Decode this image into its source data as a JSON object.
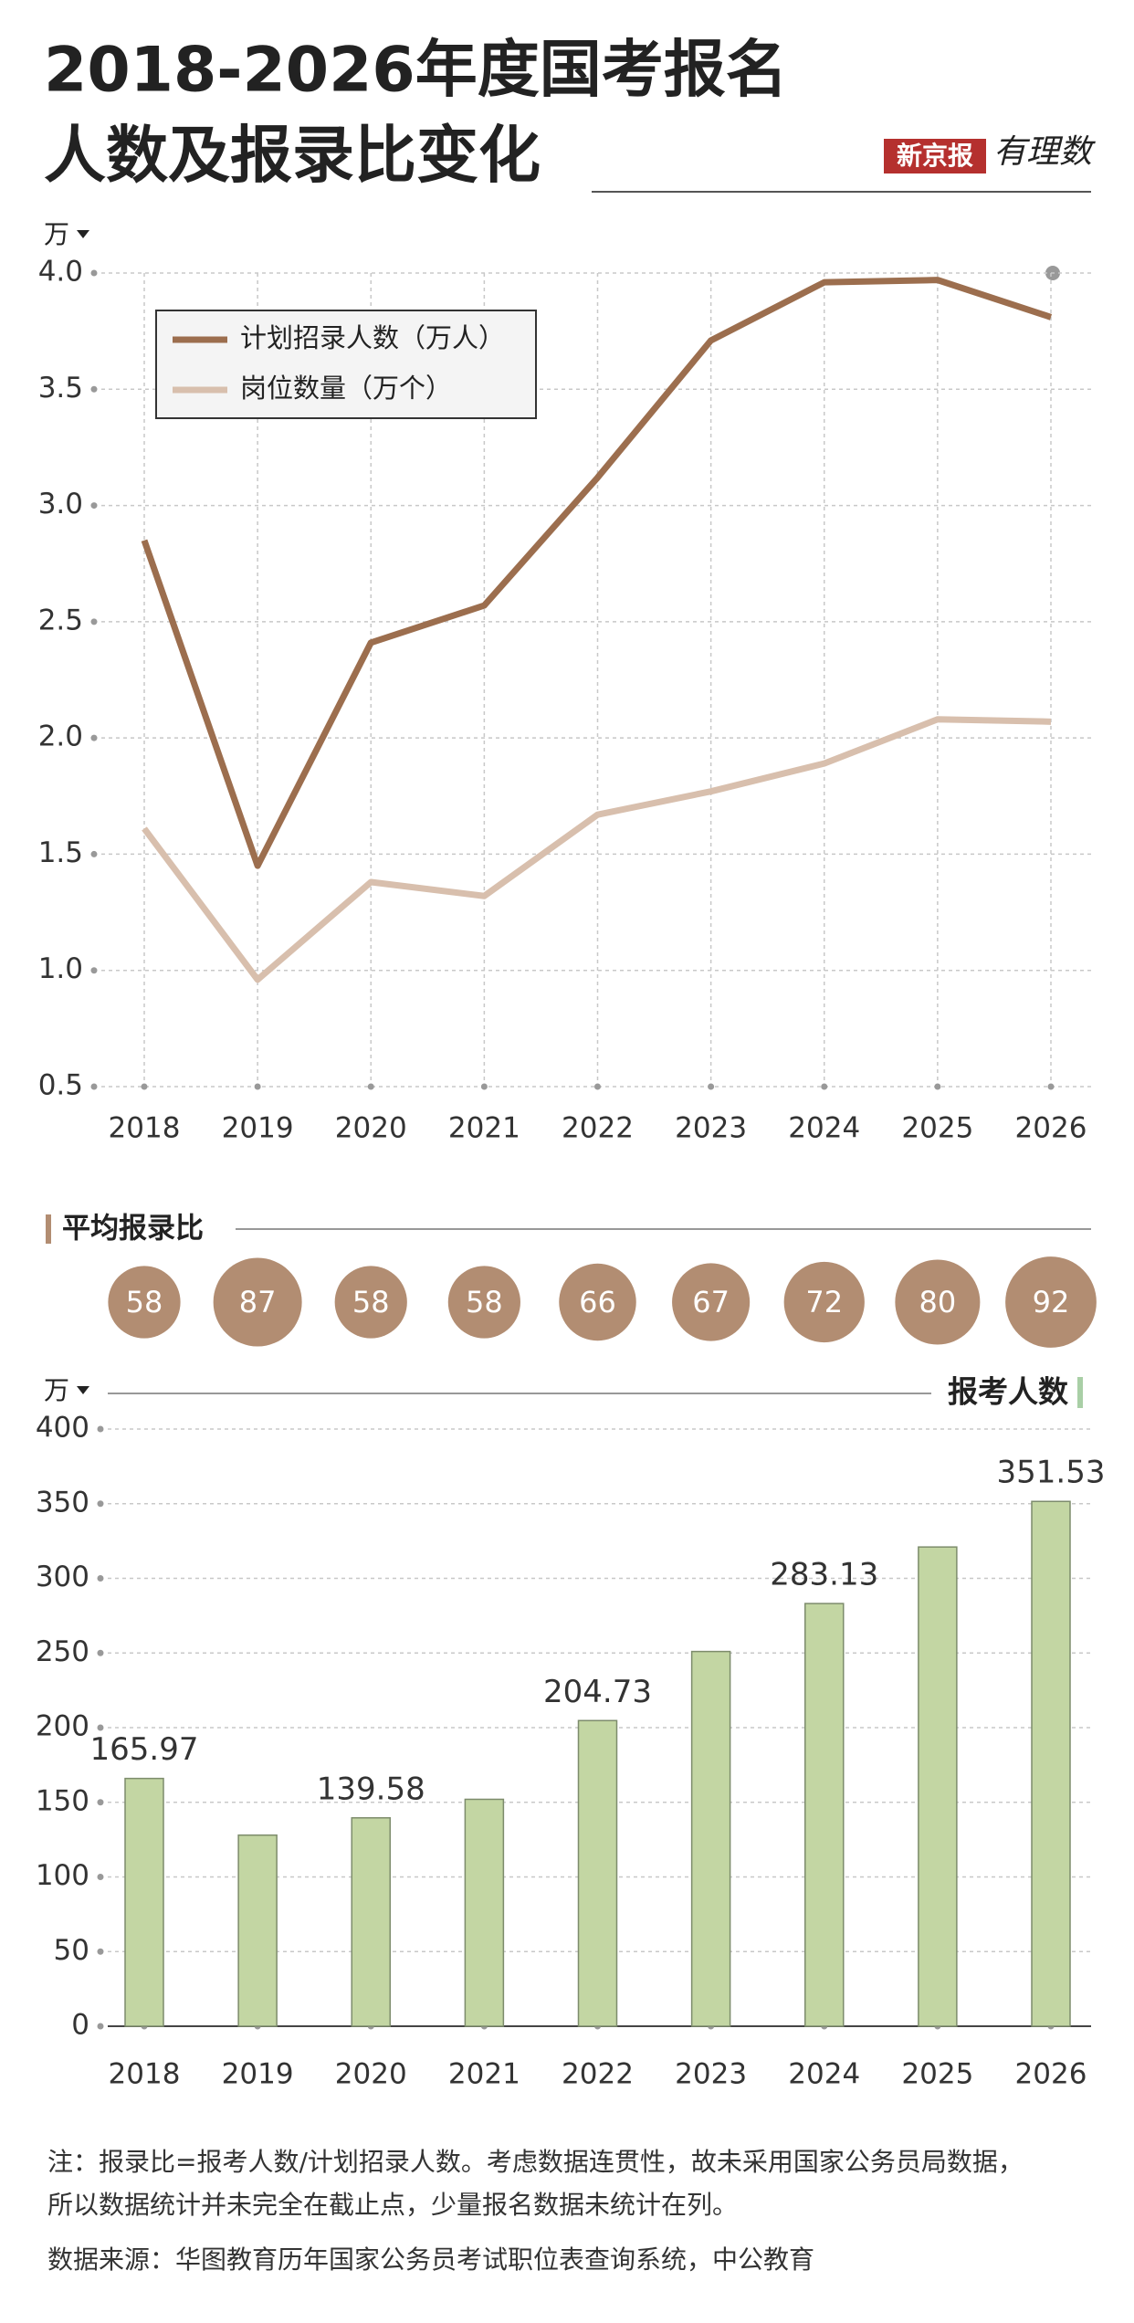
{
  "header": {
    "title_lines": [
      "2018-2026年度国考报名",
      "人数及报录比变化"
    ],
    "logo": [
      "新京报",
      "有理数"
    ]
  },
  "chart_data": [
    {
      "type": "line",
      "y_unit": "万",
      "categories": [
        "2018",
        "2019",
        "2020",
        "2021",
        "2022",
        "2023",
        "2024",
        "2025",
        "2026"
      ],
      "series": [
        {
          "name": "计划招录人数（万人）",
          "color": "#9c6e4e",
          "values": [
            2.85,
            1.45,
            2.41,
            2.57,
            3.12,
            3.71,
            3.96,
            3.97,
            3.81
          ]
        },
        {
          "name": "岗位数量（万个）",
          "color": "#d8bfad",
          "values": [
            1.61,
            0.96,
            1.38,
            1.32,
            1.67,
            1.77,
            1.89,
            2.08,
            2.07
          ]
        }
      ],
      "ylim": [
        0.5,
        4.0
      ],
      "yticks": [
        0.5,
        {
          "value": 1,
          "label": "1.0"
        },
        1.5,
        {
          "value": 2,
          "label": "2.0"
        },
        2.5,
        {
          "value": 3,
          "label": "3.0"
        },
        3.5,
        {
          "value": 4,
          "label": "4.0"
        }
      ],
      "grid": true,
      "legend": "upper left"
    },
    {
      "type": "bubble",
      "title": "平均报录比",
      "categories": [
        "2018",
        "2019",
        "2020",
        "2021",
        "2022",
        "2023",
        "2024",
        "2025",
        "2026"
      ],
      "values": [
        58,
        87,
        58,
        58,
        66,
        67,
        72,
        80,
        92
      ],
      "color": "#b28d72"
    },
    {
      "type": "bar",
      "title": "报考人数",
      "y_unit": "万",
      "categories": [
        "2018",
        "2019",
        "2020",
        "2021",
        "2022",
        "2023",
        "2024",
        "2025",
        "2026"
      ],
      "values": [
        165.97,
        128,
        139.58,
        152,
        204.73,
        251,
        283.13,
        321,
        351.53
      ],
      "value_labels": [
        "165.97",
        null,
        "139.58",
        null,
        "204.73",
        null,
        "283.13",
        null,
        "351.53"
      ],
      "color": "#c3d6a3",
      "ylim": [
        0,
        400
      ],
      "yticks": [
        0,
        50,
        100,
        150,
        200,
        250,
        300,
        350,
        400
      ],
      "grid": true
    }
  ],
  "notes": [
    "注：报录比=报考人数/计划招录人数。考虑数据连贯性，故未采用国家公务员局数据，",
    "所以数据统计并未完全在截止点，少量报名数据未统计在列。"
  ],
  "source": "数据来源：华图教育历年国家公务员考试职位表查询系统，中公教育"
}
